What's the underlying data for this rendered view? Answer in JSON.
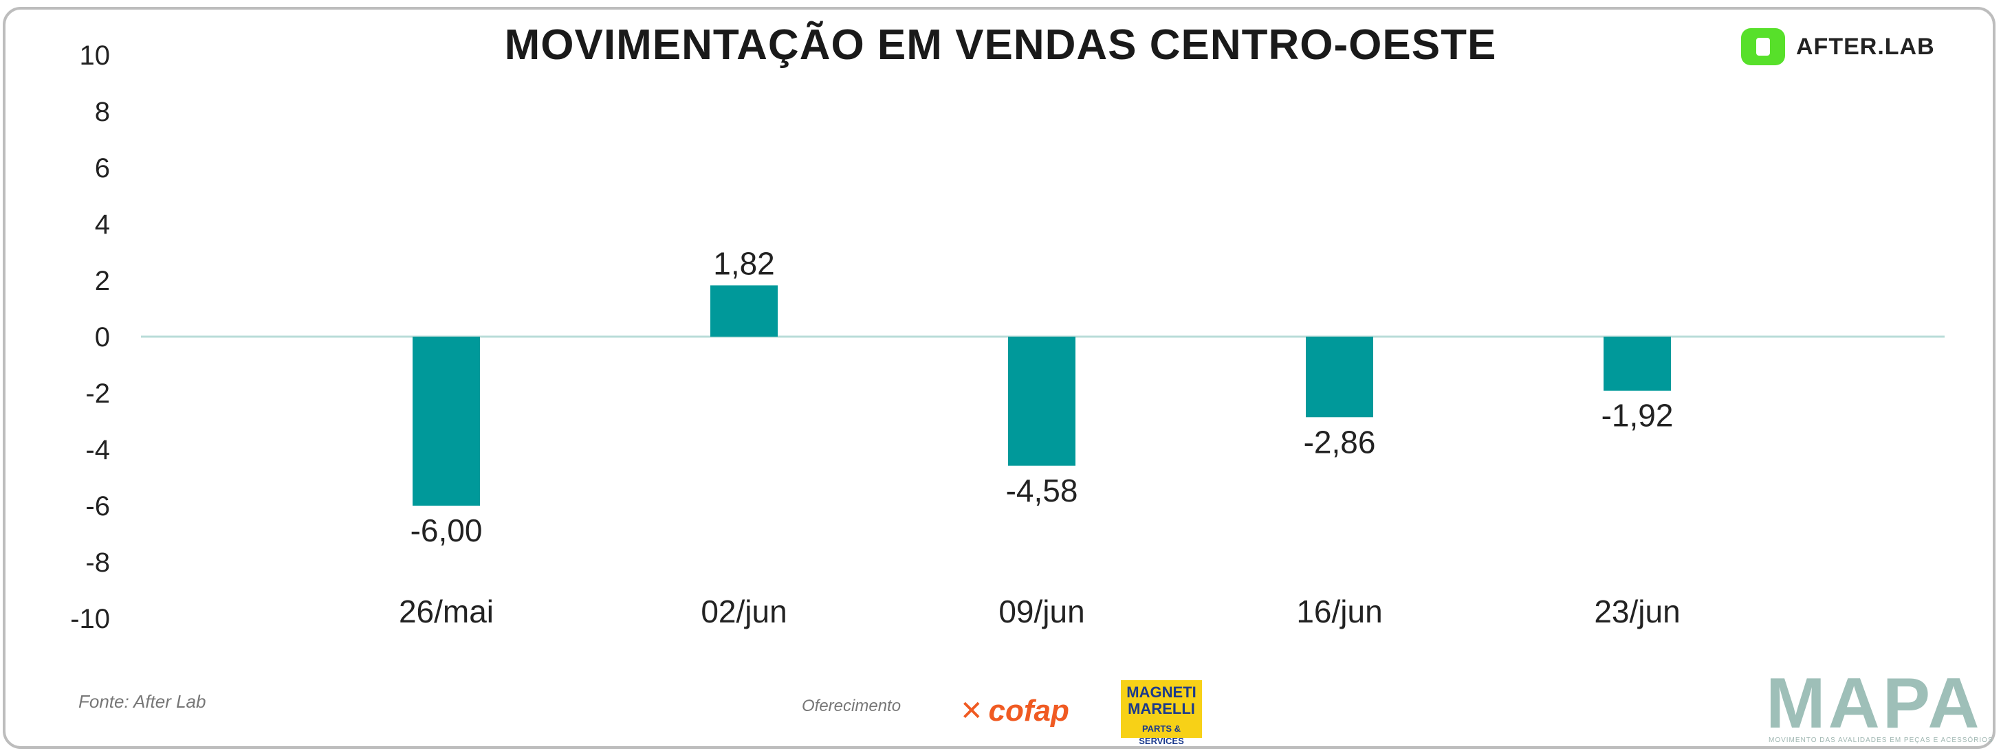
{
  "header": {
    "title": "MOVIMENTAÇÃO EM VENDAS CENTRO-OESTE",
    "brand": "AFTER.LAB"
  },
  "chart_data": {
    "type": "bar",
    "categories": [
      "26/mai",
      "02/jun",
      "09/jun",
      "16/jun",
      "23/jun"
    ],
    "values": [
      -6.0,
      1.82,
      -4.58,
      -2.86,
      -1.92
    ],
    "value_labels": [
      "-6,00",
      "1,82",
      "-4,58",
      "-2,86",
      "-1,92"
    ],
    "yticks": [
      10,
      8,
      6,
      4,
      2,
      0,
      -2,
      -4,
      -6,
      -8,
      -10
    ],
    "ylim": [
      -10,
      10
    ],
    "title": "MOVIMENTAÇÃO EM VENDAS CENTRO-OESTE",
    "xlabel": "",
    "ylabel": "",
    "bar_color": "#00999a",
    "zero_line_color": "#b9dcd8",
    "grid": false
  },
  "footer": {
    "source": "Fonte: After Lab",
    "sponsor_label": "Oferecimento",
    "sponsor1": "cofap",
    "sponsor2_line1": "MAGNETI MARELLI",
    "sponsor2_line2": "PARTS & SERVICES",
    "mapa": "MAPA",
    "mapa_sub": "MOVIMENTO DAS AVALIDADES EM PEÇAS E ACESSÓRIOS"
  },
  "icons": {
    "brand_logo": "afterlab-logo-icon",
    "cofap_mark": "cofap-x-icon"
  }
}
